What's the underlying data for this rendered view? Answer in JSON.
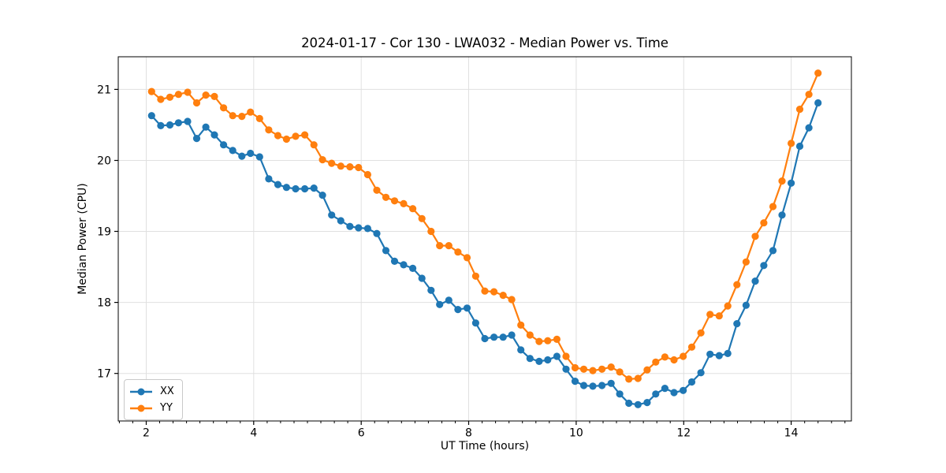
{
  "chart_data": {
    "type": "line",
    "title": "2024-01-17 - Cor 130 - LWA032 - Median Power vs. Time",
    "xlabel": "UT Time (hours)",
    "ylabel": "Median Power (CPU)",
    "xlim": [
      1.48,
      15.12
    ],
    "ylim": [
      16.33,
      21.46
    ],
    "x_ticks": [
      2,
      4,
      6,
      8,
      10,
      12,
      14
    ],
    "y_ticks": [
      17,
      18,
      19,
      20,
      21
    ],
    "x_minor_step": 0.25,
    "grid": true,
    "legend_position": "lower left",
    "style": {
      "grid_color": "#e0e0e0",
      "spine_color": "#000000",
      "tick_color": "#000000",
      "background": "#ffffff",
      "marker_radius": 4.6,
      "line_width": 2.2
    },
    "x": [
      2.1,
      2.27,
      2.44,
      2.6,
      2.77,
      2.94,
      3.11,
      3.27,
      3.44,
      3.61,
      3.78,
      3.94,
      4.11,
      4.28,
      4.45,
      4.61,
      4.78,
      4.95,
      5.12,
      5.28,
      5.45,
      5.62,
      5.79,
      5.95,
      6.12,
      6.29,
      6.46,
      6.62,
      6.79,
      6.96,
      7.13,
      7.3,
      7.46,
      7.63,
      7.8,
      7.97,
      8.13,
      8.3,
      8.47,
      8.64,
      8.8,
      8.97,
      9.14,
      9.31,
      9.47,
      9.64,
      9.81,
      9.98,
      10.14,
      10.31,
      10.48,
      10.65,
      10.81,
      10.98,
      11.15,
      11.32,
      11.48,
      11.65,
      11.82,
      11.99,
      12.15,
      12.32,
      12.49,
      12.66,
      12.82,
      12.99,
      13.16,
      13.33,
      13.49,
      13.66,
      13.83,
      14.0,
      14.16,
      14.33,
      14.5
    ],
    "series": [
      {
        "name": "XX",
        "color": "#1f77b4",
        "values": [
          20.63,
          20.49,
          20.5,
          20.53,
          20.55,
          20.31,
          20.47,
          20.36,
          20.22,
          20.14,
          20.06,
          20.1,
          20.05,
          19.74,
          19.66,
          19.62,
          19.6,
          19.6,
          19.61,
          19.51,
          19.23,
          19.15,
          19.07,
          19.05,
          19.04,
          18.97,
          18.73,
          18.58,
          18.53,
          18.48,
          18.34,
          18.17,
          17.97,
          18.03,
          17.9,
          17.92,
          17.71,
          17.49,
          17.51,
          17.51,
          17.54,
          17.33,
          17.21,
          17.17,
          17.19,
          17.24,
          17.06,
          16.89,
          16.83,
          16.82,
          16.83,
          16.86,
          16.71,
          16.58,
          16.56,
          16.59,
          16.71,
          16.79,
          16.73,
          16.76,
          16.88,
          17.01,
          17.27,
          17.25,
          17.28,
          17.7,
          17.96,
          18.3,
          18.52,
          18.73,
          19.23,
          19.68,
          20.2,
          20.46,
          20.81
        ]
      },
      {
        "name": "YY",
        "color": "#ff7f0e",
        "values": [
          20.97,
          20.86,
          20.89,
          20.93,
          20.96,
          20.81,
          20.92,
          20.9,
          20.74,
          20.63,
          20.62,
          20.68,
          20.59,
          20.43,
          20.35,
          20.3,
          20.34,
          20.36,
          20.22,
          20.01,
          19.96,
          19.92,
          19.91,
          19.9,
          19.8,
          19.58,
          19.48,
          19.43,
          19.39,
          19.32,
          19.18,
          19.0,
          18.8,
          18.8,
          18.71,
          18.63,
          18.37,
          18.16,
          18.15,
          18.1,
          18.04,
          17.68,
          17.54,
          17.45,
          17.46,
          17.48,
          17.24,
          17.08,
          17.06,
          17.04,
          17.06,
          17.09,
          17.02,
          16.92,
          16.93,
          17.05,
          17.16,
          17.23,
          17.19,
          17.24,
          17.37,
          17.57,
          17.83,
          17.81,
          17.95,
          18.25,
          18.57,
          18.93,
          19.12,
          19.35,
          19.71,
          20.24,
          20.72,
          20.93,
          21.23
        ]
      }
    ]
  }
}
